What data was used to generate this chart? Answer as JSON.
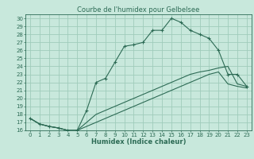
{
  "title": "Courbe de l'humidex pour Gelbelsee",
  "xlabel": "Humidex (Indice chaleur)",
  "xlim": [
    -0.5,
    23.5
  ],
  "ylim": [
    16,
    30.5
  ],
  "yticks": [
    16,
    17,
    18,
    19,
    20,
    21,
    22,
    23,
    24,
    25,
    26,
    27,
    28,
    29,
    30
  ],
  "xticks": [
    0,
    1,
    2,
    3,
    4,
    5,
    6,
    7,
    8,
    9,
    10,
    11,
    12,
    13,
    14,
    15,
    16,
    17,
    18,
    19,
    20,
    21,
    22,
    23
  ],
  "bg_color": "#c8e8dc",
  "grid_color": "#a0ccbb",
  "line_color": "#2d6b55",
  "series1_x": [
    0,
    1,
    2,
    3,
    4,
    5,
    6,
    7,
    8,
    9,
    10,
    11,
    12,
    13,
    14,
    15,
    16,
    17,
    18,
    19,
    20,
    21,
    22,
    23
  ],
  "series1_y": [
    17.5,
    16.8,
    16.5,
    16.3,
    16.0,
    16.0,
    18.5,
    22.0,
    22.5,
    24.5,
    26.5,
    26.7,
    27.0,
    28.5,
    28.5,
    30.0,
    29.5,
    28.5,
    28.0,
    27.5,
    26.0,
    23.0,
    23.0,
    21.5
  ],
  "series2_x": [
    0,
    1,
    2,
    3,
    4,
    5,
    6,
    7,
    8,
    9,
    10,
    11,
    12,
    13,
    14,
    15,
    16,
    17,
    18,
    19,
    20,
    21,
    22,
    23
  ],
  "series2_y": [
    17.5,
    16.8,
    16.5,
    16.3,
    16.0,
    16.0,
    17.0,
    18.0,
    18.5,
    19.0,
    19.5,
    20.0,
    20.5,
    21.0,
    21.5,
    22.0,
    22.5,
    23.0,
    23.3,
    23.5,
    23.8,
    24.0,
    21.8,
    21.5
  ],
  "series3_x": [
    0,
    1,
    2,
    3,
    4,
    5,
    6,
    7,
    8,
    9,
    10,
    11,
    12,
    13,
    14,
    15,
    16,
    17,
    18,
    19,
    20,
    21,
    22,
    23
  ],
  "series3_y": [
    17.5,
    16.8,
    16.5,
    16.3,
    16.0,
    16.0,
    16.5,
    17.0,
    17.5,
    18.0,
    18.5,
    19.0,
    19.5,
    20.0,
    20.5,
    21.0,
    21.5,
    22.0,
    22.5,
    23.0,
    23.3,
    21.8,
    21.5,
    21.3
  ],
  "title_fontsize": 6,
  "tick_fontsize": 5,
  "xlabel_fontsize": 6
}
